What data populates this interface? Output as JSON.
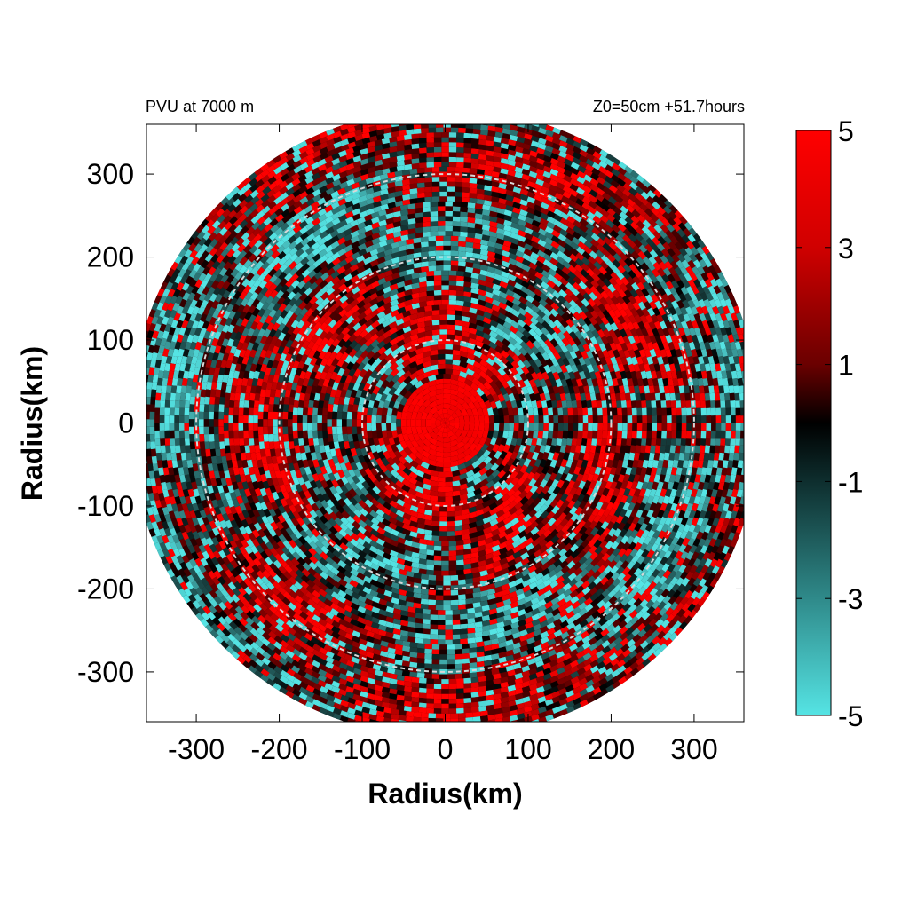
{
  "chart_data": {
    "type": "heatmap",
    "title_left": "PVU at  7000 m",
    "title_right": "Z0=50cm  +51.7hours",
    "xlabel": "Radius(km)",
    "ylabel": "Radius(km)",
    "xlim": [
      -360,
      360
    ],
    "ylim": [
      -360,
      360
    ],
    "xticks": [
      -300,
      -200,
      -100,
      0,
      100,
      200,
      300
    ],
    "yticks": [
      -300,
      -200,
      -100,
      0,
      100,
      200,
      300
    ],
    "xtick_labels": [
      "-300",
      "-200",
      "-100",
      "0",
      "100",
      "200",
      "300"
    ],
    "ytick_labels": [
      "300",
      "200",
      "100",
      "0",
      "-100",
      "-200",
      "-300"
    ],
    "domain_radius_km": 380,
    "range_rings_km": [
      100,
      200,
      300
    ],
    "grid": false,
    "colorbar": {
      "range": [
        -5,
        5
      ],
      "ticks": [
        5,
        3,
        1,
        -1,
        -3,
        -5
      ],
      "tick_labels": [
        "5",
        "3",
        "1",
        "-1",
        "-3",
        "-5"
      ],
      "colors": {
        "high": "#ff0000",
        "mid": "#000000",
        "low": "#55e4e4"
      },
      "placement": "right"
    }
  }
}
